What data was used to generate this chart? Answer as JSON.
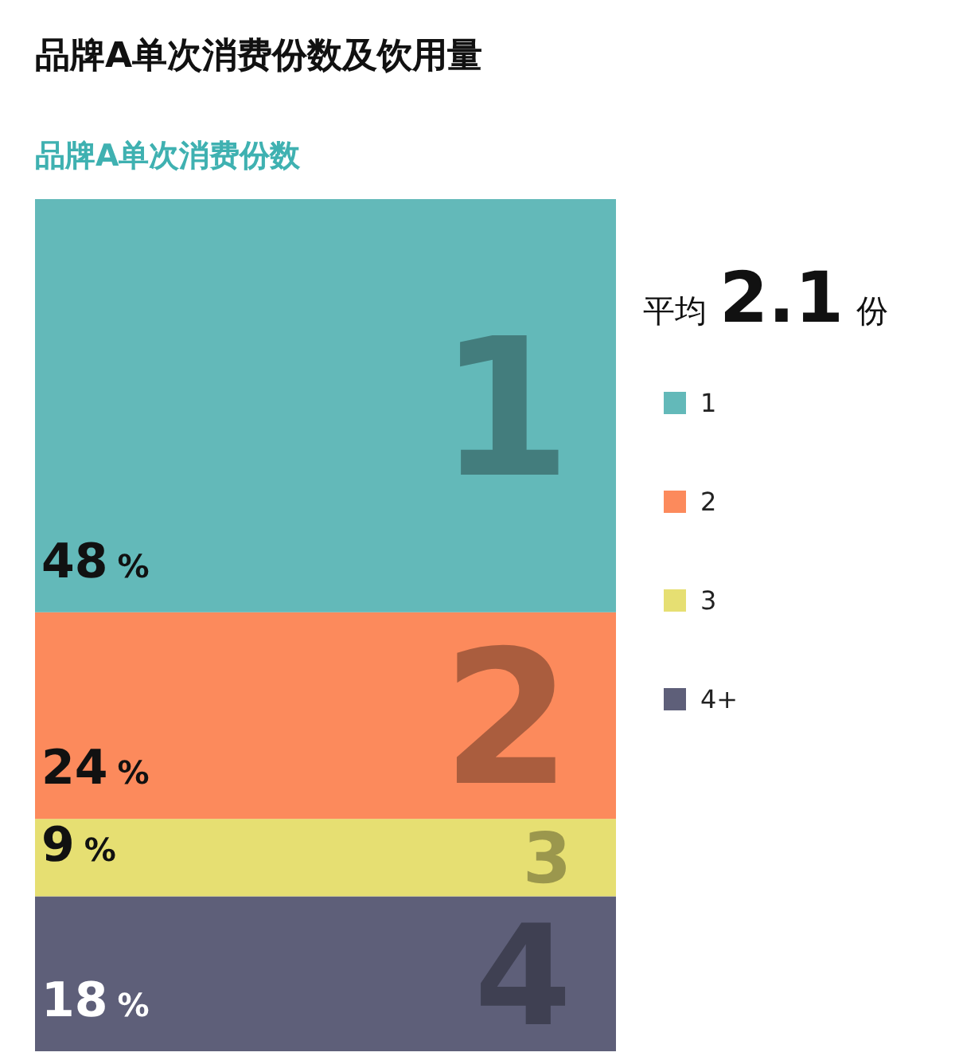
{
  "chart_data": {
    "type": "bar",
    "stacked": true,
    "title": "品牌A单次消费份数及饮用量",
    "subtitle": "品牌A单次消费份数",
    "categories": [
      null
    ],
    "series": [
      {
        "name": "4+",
        "color": "#5e5f79",
        "values": [
          18
        ],
        "value_labels": [
          "18 %"
        ]
      },
      {
        "name": "3",
        "color": "#e6df72",
        "values": [
          9
        ],
        "value_labels": [
          "9 %"
        ]
      },
      {
        "name": "2",
        "color": "#fc8a5c",
        "values": [
          24
        ],
        "value_labels": [
          "24 %"
        ]
      },
      {
        "name": "1",
        "color": "#63b9b9",
        "values": [
          48
        ],
        "value_labels": [
          "48 %"
        ]
      }
    ],
    "annotations": [
      "平均2.1份",
      "4",
      "3",
      "2",
      "1"
    ],
    "legend": "right"
  }
}
